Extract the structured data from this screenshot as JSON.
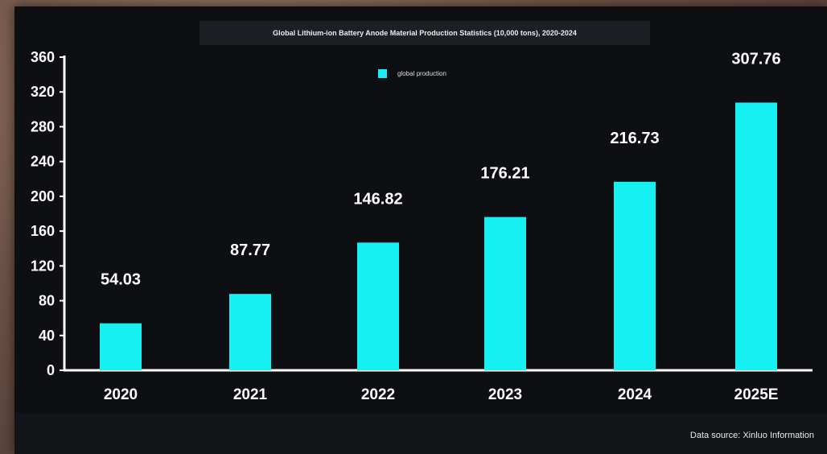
{
  "chart_data": {
    "type": "bar",
    "title": "Global Lithium-ion Battery Anode Material Production Statistics (10,000 tons), 2020-2024",
    "categories": [
      "2020",
      "2021",
      "2022",
      "2023",
      "2024",
      "2025E"
    ],
    "series": [
      {
        "name": "global production",
        "values": [
          54.03,
          87.77,
          146.82,
          176.21,
          216.73,
          307.76
        ],
        "labels": [
          "54.03",
          "87.77",
          "146.82",
          "176.21",
          "216.73",
          "307.76"
        ]
      }
    ],
    "ylim": [
      0,
      360
    ],
    "yticks": [
      "0",
      "40",
      "80",
      "120",
      "160",
      "200",
      "240",
      "280",
      "320",
      "360"
    ],
    "ytick_values": [
      0,
      40,
      80,
      120,
      160,
      200,
      240,
      280,
      320,
      360
    ],
    "grid": false,
    "legend_position": "top-center",
    "source": "Data source: Xinluo Information"
  },
  "colors": {
    "bar": "#17f0f3",
    "background": "#0d0f12",
    "axis": "#ffffff",
    "text": "#ffffff"
  }
}
